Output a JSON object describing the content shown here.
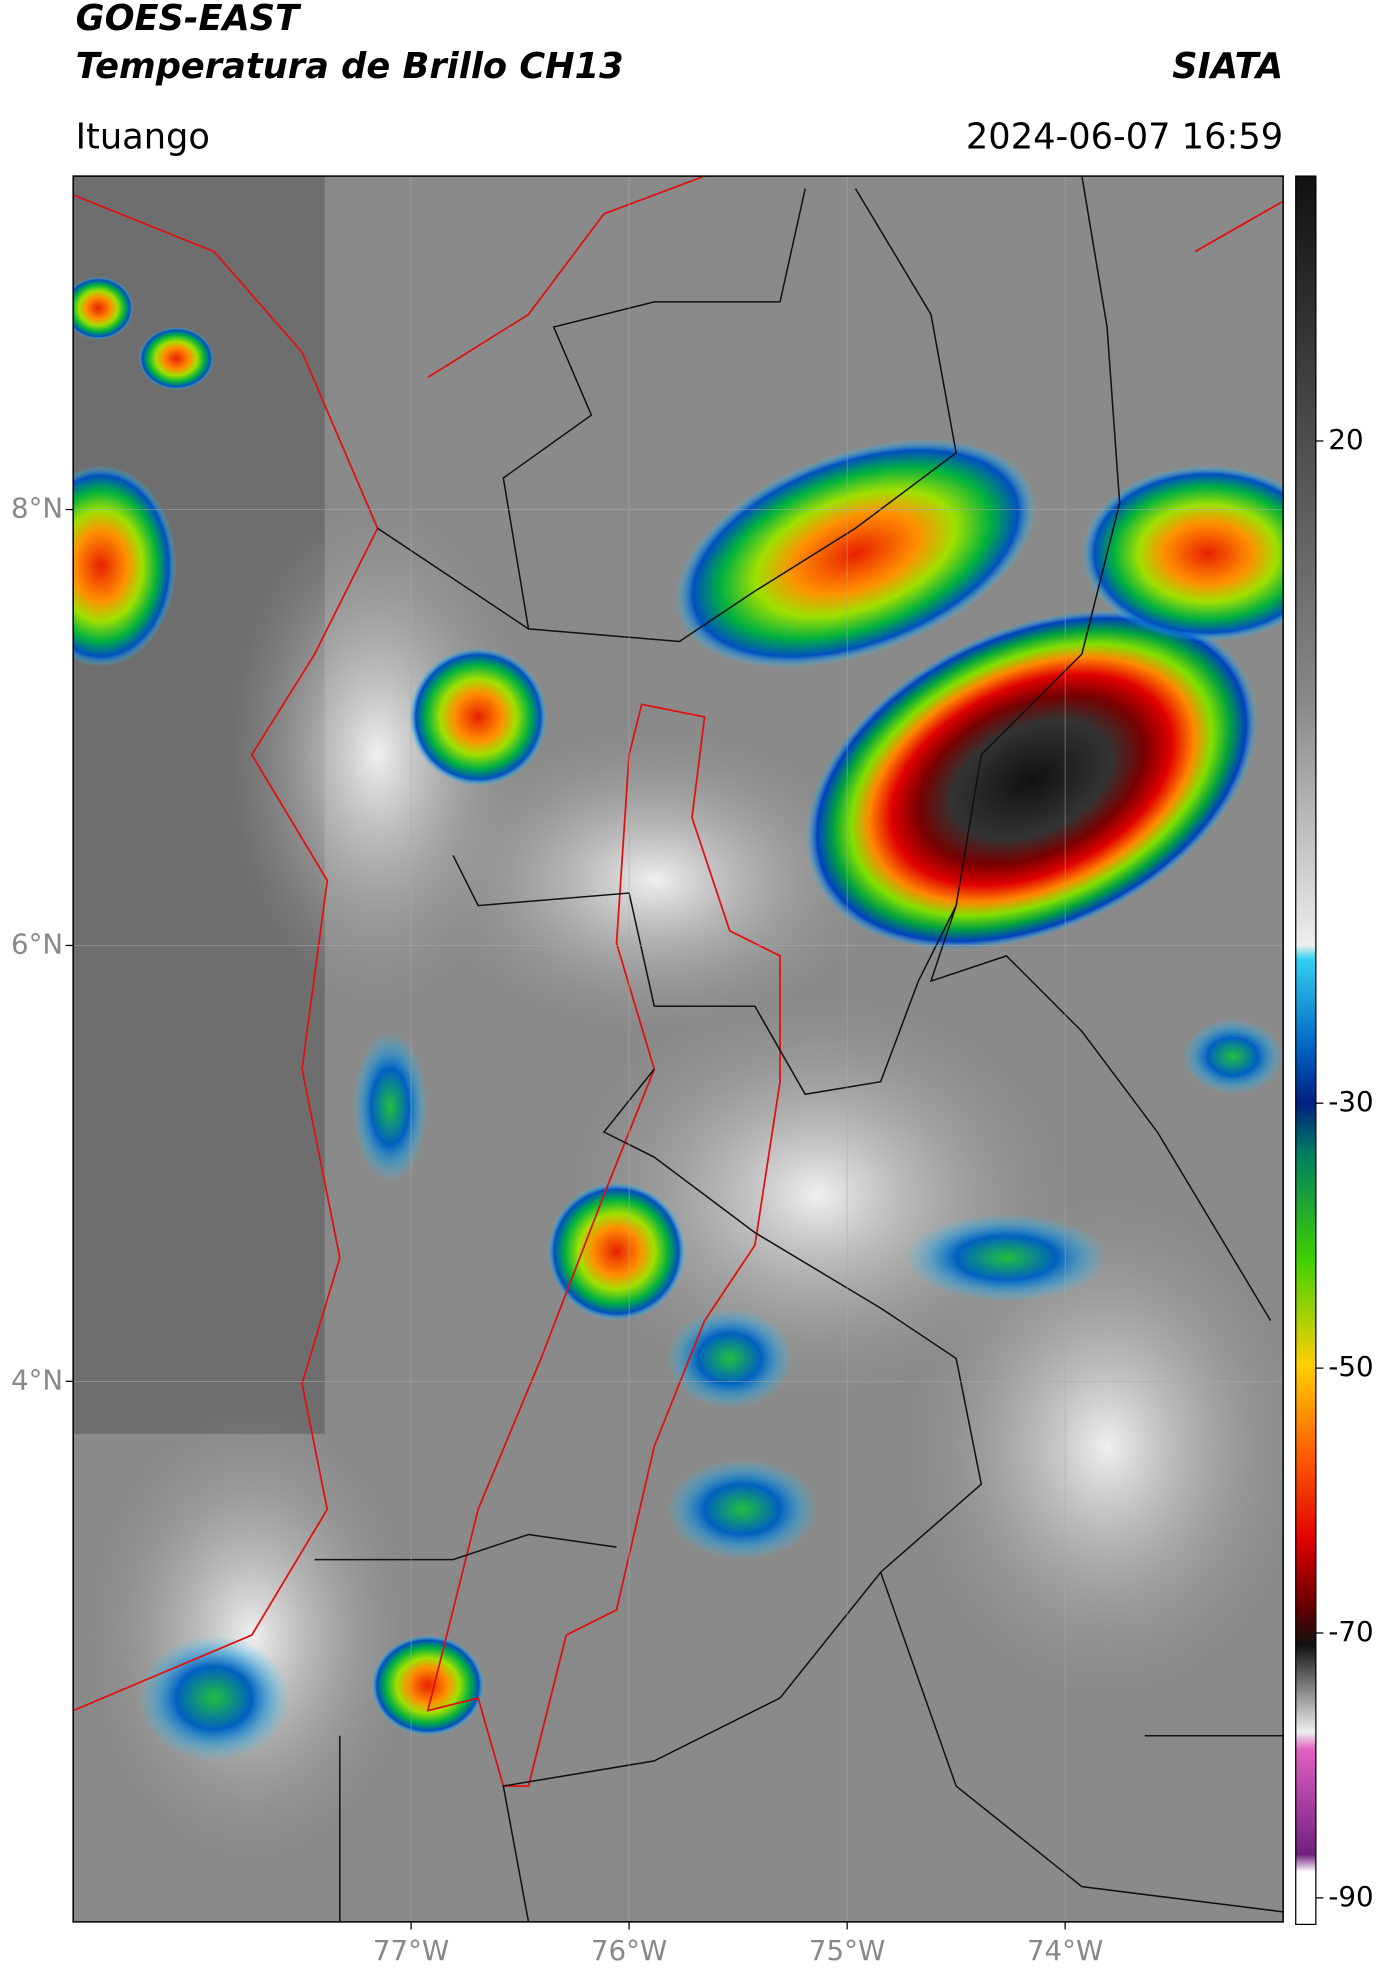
{
  "header": {
    "satellite": "GOES-EAST",
    "product": "Temperatura de Brillo CH13",
    "source": "SIATA",
    "region": "Ituango",
    "datetime": "2024-06-07 16:59"
  },
  "chart_data": {
    "type": "map",
    "xlim": [
      -78.55,
      -73.0
    ],
    "ylim": [
      1.52,
      9.53
    ],
    "xticks": [
      {
        "value": -77,
        "label": "77°W"
      },
      {
        "value": -76,
        "label": "76°W"
      },
      {
        "value": -75,
        "label": "75°W"
      },
      {
        "value": -74,
        "label": "74°W"
      }
    ],
    "yticks": [
      {
        "value": 8,
        "label": "8°N"
      },
      {
        "value": 6,
        "label": "6°N"
      },
      {
        "value": 4,
        "label": "4°N"
      }
    ],
    "grid": true,
    "clim": [
      -92,
      40
    ],
    "cticks": [
      20,
      -30,
      -50,
      -70,
      -90
    ]
  }
}
